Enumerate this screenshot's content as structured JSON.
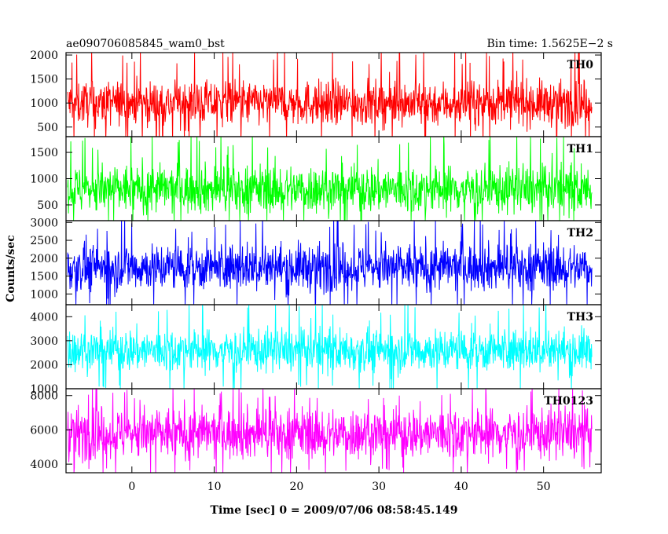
{
  "chart_data": {
    "type": "line",
    "title_left": "ae090706085845_wam0_bst",
    "title_right": "Bin time: 1.5625E−2 s",
    "xlabel": "Time [sec] 0 = 2009/07/06 08:58:45.149",
    "ylabel": "Counts/sec",
    "xlim": [
      -8,
      57
    ],
    "x_data_range": [
      -7.8,
      55.9
    ],
    "x_ticks": [
      0,
      10,
      20,
      30,
      40,
      50
    ],
    "x_tick_labels": [
      "0",
      "10",
      "20",
      "30",
      "40",
      "50"
    ],
    "grid": false,
    "series": [
      {
        "name": "TH0",
        "color": "#ff0000",
        "ylim": [
          300,
          2050
        ],
        "ticks": [
          500,
          1000,
          1500,
          2000
        ],
        "tick_labels": [
          "500",
          "1000",
          "1500",
          "2000"
        ],
        "mean": 1000,
        "spread": 230,
        "min": 180,
        "max": 2050
      },
      {
        "name": "TH1",
        "color": "#00ff00",
        "ylim": [
          200,
          1800
        ],
        "ticks": [
          500,
          1000,
          1500
        ],
        "tick_labels": [
          "500",
          "1000",
          "1500"
        ],
        "mean": 800,
        "spread": 230,
        "min": 200,
        "max": 1800
      },
      {
        "name": "TH2",
        "color": "#0000ff",
        "ylim": [
          700,
          3050
        ],
        "ticks": [
          1000,
          1500,
          2000,
          2500,
          3000
        ],
        "tick_labels": [
          "1000",
          "1500",
          "2000",
          "2500",
          "3000"
        ],
        "mean": 1750,
        "spread": 330,
        "min": 700,
        "max": 3050
      },
      {
        "name": "TH3",
        "color": "#00ffff",
        "ylim": [
          1000,
          4500
        ],
        "ticks": [
          1000,
          2000,
          3000,
          4000
        ],
        "tick_labels": [
          "1000",
          "2000",
          "3000",
          "4000"
        ],
        "mean": 2600,
        "spread": 450,
        "min": 1000,
        "max": 4500
      },
      {
        "name": "TH0123",
        "color": "#ff00ff",
        "ylim": [
          3500,
          8400
        ],
        "ticks": [
          4000,
          6000,
          8000
        ],
        "tick_labels": [
          "4000",
          "6000",
          "8000"
        ],
        "mean": 5800,
        "spread": 750,
        "min": 3500,
        "max": 8400
      }
    ]
  }
}
